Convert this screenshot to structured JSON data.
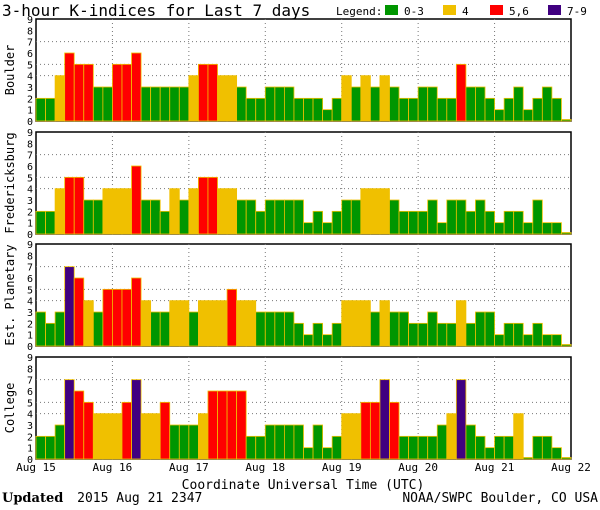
{
  "chart_data": {
    "type": "bar",
    "title": "3-hour K-indices for Last 7 days",
    "xlabel": "Coordinate Universal Time (UTC)",
    "ylim": [
      0,
      9
    ],
    "yticks": [
      "0",
      "1",
      "2",
      "3",
      "4",
      "5",
      "6",
      "7",
      "8",
      "9"
    ],
    "x_tick_labels": [
      "Aug 15",
      "Aug 16",
      "Aug 17",
      "Aug 18",
      "Aug 19",
      "Aug 20",
      "Aug 21",
      "Aug 22"
    ],
    "grid": true,
    "legend": {
      "title": "Legend:",
      "placement": "top-right",
      "entries": [
        {
          "label": "0-3",
          "color": "#009600"
        },
        {
          "label": "4",
          "color": "#f0c000"
        },
        {
          "label": "5,6",
          "color": "#ff0000"
        },
        {
          "label": "7-9",
          "color": "#400080"
        }
      ]
    },
    "series": [
      {
        "name": "Boulder",
        "values": [
          2,
          2,
          4,
          6,
          5,
          5,
          3,
          3,
          5,
          5,
          6,
          3,
          3,
          3,
          3,
          3,
          4,
          5,
          5,
          4,
          4,
          3,
          2,
          2,
          3,
          3,
          3,
          2,
          2,
          2,
          1,
          2,
          4,
          3,
          4,
          3,
          4,
          3,
          2,
          2,
          3,
          3,
          2,
          2,
          5,
          3,
          3,
          2,
          1,
          2,
          3,
          1,
          2,
          3,
          2,
          0
        ]
      },
      {
        "name": "Fredericksburg",
        "values": [
          2,
          2,
          4,
          5,
          5,
          3,
          3,
          4,
          4,
          4,
          6,
          3,
          3,
          2,
          4,
          3,
          4,
          5,
          5,
          4,
          4,
          3,
          3,
          2,
          3,
          3,
          3,
          3,
          1,
          2,
          1,
          2,
          3,
          3,
          4,
          4,
          4,
          3,
          2,
          2,
          2,
          3,
          1,
          3,
          3,
          2,
          3,
          2,
          1,
          2,
          2,
          1,
          3,
          1,
          1,
          0
        ]
      },
      {
        "name": "Est. Planetary",
        "values": [
          3,
          2,
          3,
          7,
          6,
          4,
          3,
          5,
          5,
          5,
          6,
          4,
          3,
          3,
          4,
          4,
          3,
          4,
          4,
          4,
          5,
          4,
          4,
          3,
          3,
          3,
          3,
          2,
          1,
          2,
          1,
          2,
          4,
          4,
          4,
          3,
          4,
          3,
          3,
          2,
          2,
          3,
          2,
          2,
          4,
          2,
          3,
          3,
          1,
          2,
          2,
          1,
          2,
          1,
          1,
          0
        ]
      },
      {
        "name": "College",
        "values": [
          2,
          2,
          3,
          7,
          6,
          5,
          4,
          4,
          4,
          5,
          7,
          4,
          4,
          5,
          3,
          3,
          3,
          4,
          6,
          6,
          6,
          6,
          2,
          2,
          3,
          3,
          3,
          3,
          1,
          3,
          1,
          2,
          4,
          4,
          5,
          5,
          7,
          5,
          2,
          2,
          2,
          2,
          3,
          4,
          7,
          3,
          2,
          1,
          2,
          2,
          4,
          0,
          2,
          2,
          1,
          0
        ]
      }
    ]
  },
  "footer": {
    "updated_label": "Updated",
    "updated_value": "2015 Aug 21 2347",
    "source": "NOAA/SWPC Boulder, CO USA"
  }
}
